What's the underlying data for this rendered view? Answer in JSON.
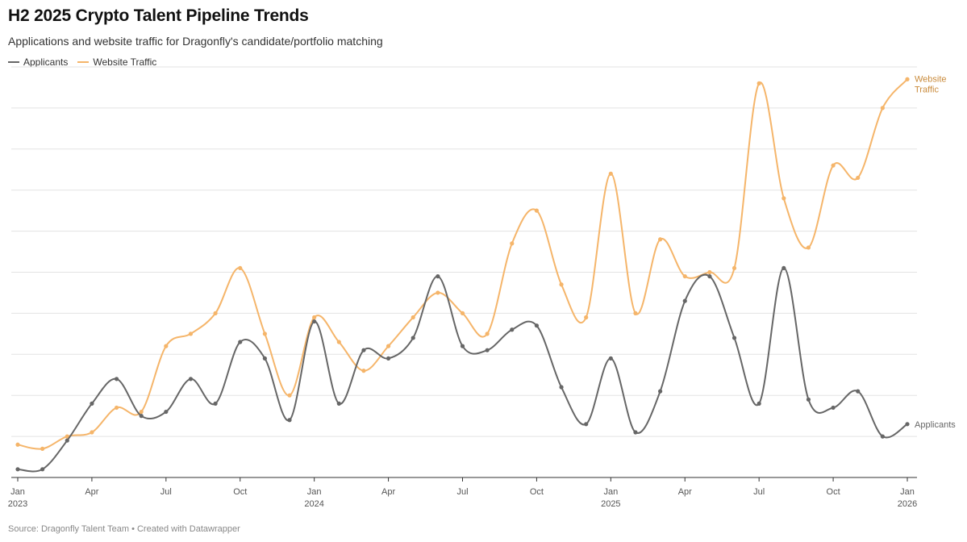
{
  "title": "H2 2025 Crypto Talent Pipeline Trends",
  "subtitle": "Applications and website traffic for Dragonfly's candidate/portfolio matching",
  "source": "Source: Dragonfly Talent Team • Created with Datawrapper",
  "chart_data": {
    "type": "line",
    "grid": "horizontal",
    "legend_position": "top-left",
    "x": [
      "2023-01",
      "2023-02",
      "2023-03",
      "2023-04",
      "2023-05",
      "2023-06",
      "2023-07",
      "2023-08",
      "2023-09",
      "2023-10",
      "2023-11",
      "2023-12",
      "2024-01",
      "2024-02",
      "2024-03",
      "2024-04",
      "2024-05",
      "2024-06",
      "2024-07",
      "2024-08",
      "2024-09",
      "2024-10",
      "2024-11",
      "2024-12",
      "2025-01",
      "2025-02",
      "2025-03",
      "2025-04",
      "2025-05",
      "2025-06",
      "2025-07",
      "2025-08",
      "2025-09",
      "2025-10",
      "2025-11",
      "2025-12",
      "2026-01"
    ],
    "x_ticks": [
      {
        "month": "Jan",
        "year": "2023"
      },
      {
        "month": "Apr",
        "year": ""
      },
      {
        "month": "Jul",
        "year": ""
      },
      {
        "month": "Oct",
        "year": ""
      },
      {
        "month": "Jan",
        "year": "2024"
      },
      {
        "month": "Apr",
        "year": ""
      },
      {
        "month": "Jul",
        "year": ""
      },
      {
        "month": "Oct",
        "year": ""
      },
      {
        "month": "Jan",
        "year": "2025"
      },
      {
        "month": "Apr",
        "year": ""
      },
      {
        "month": "Jul",
        "year": ""
      },
      {
        "month": "Oct",
        "year": ""
      },
      {
        "month": "Jan",
        "year": "2026"
      }
    ],
    "y_range": [
      0,
      100
    ],
    "series": [
      {
        "name": "Applicants",
        "color": "#666666",
        "end_label": "Applicants",
        "values": [
          2,
          2,
          9,
          18,
          24,
          15,
          16,
          24,
          18,
          33,
          29,
          14,
          38,
          18,
          31,
          29,
          34,
          49,
          32,
          31,
          36,
          37,
          22,
          13,
          29,
          11,
          21,
          43,
          49,
          34,
          18,
          51,
          19,
          17,
          21,
          10,
          13
        ]
      },
      {
        "name": "Website Traffic",
        "color": "#f5b56a",
        "end_label": "Website Traffic",
        "values": [
          8,
          7,
          10,
          11,
          17,
          16,
          32,
          35,
          40,
          51,
          35,
          20,
          39,
          33,
          26,
          32,
          39,
          45,
          40,
          35,
          57,
          65,
          47,
          39,
          74,
          40,
          58,
          49,
          50,
          51,
          96,
          68,
          56,
          76,
          73,
          90,
          97
        ]
      }
    ]
  }
}
